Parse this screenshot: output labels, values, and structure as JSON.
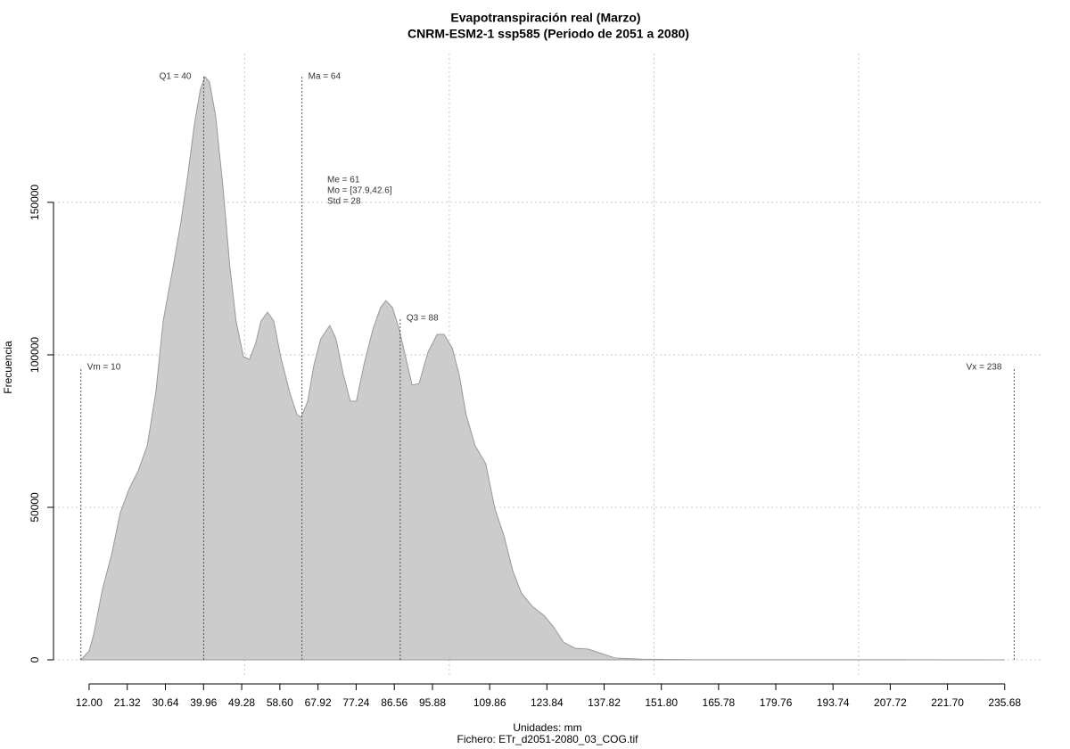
{
  "chart_data": {
    "type": "area",
    "title": "Evapotranspiración real (Marzo)",
    "subtitle": "CNRM-ESM2-1 ssp585 (Periodo de 2051 a 2080)",
    "x_label": "Unidades: mm",
    "y_label": "Frecuencia",
    "caption": "Fichero: ETr_d2051-2080_03_COG.tif",
    "color": "#cccccc",
    "line_color": "#999999",
    "x": [
      10,
      12,
      13.1,
      15.3,
      17.5,
      19.6,
      21.8,
      24,
      26.2,
      28.3,
      30.1,
      32.3,
      34.4,
      36,
      37.7,
      39.2,
      40.3,
      41.4,
      42.9,
      44.7,
      46.4,
      47.9,
      49.7,
      51.2,
      52.7,
      54,
      55.6,
      57.1,
      58.8,
      61,
      62.8,
      63.8,
      65.4,
      66.9,
      68.6,
      70.8,
      72.3,
      74.1,
      75.8,
      77.3,
      79.1,
      81.3,
      83.2,
      84.5,
      86.1,
      87.8,
      89.3,
      90.9,
      92.6,
      94.8,
      97,
      98.7,
      100.7,
      102.4,
      104.1,
      106.3,
      108.9,
      111.1,
      113.3,
      115.5,
      117.6,
      120.3,
      123.1,
      125.3,
      127.9,
      130.7,
      134,
      137.3,
      140.5,
      147,
      160,
      235.7
    ],
    "values": [
      0,
      2900,
      8200,
      23400,
      34500,
      48200,
      56100,
      62000,
      70200,
      87700,
      111100,
      127200,
      143300,
      157900,
      175400,
      187100,
      191200,
      189500,
      178400,
      155000,
      128700,
      111100,
      99400,
      98500,
      103800,
      111100,
      114000,
      111100,
      99400,
      87700,
      80400,
      79500,
      84800,
      96500,
      105300,
      109600,
      105300,
      93600,
      84800,
      84800,
      96500,
      108200,
      115500,
      117800,
      115500,
      108200,
      99400,
      90100,
      90600,
      100900,
      106700,
      106700,
      102300,
      93600,
      80400,
      70200,
      64300,
      49700,
      40900,
      29200,
      21900,
      17500,
      14600,
      11100,
      5800,
      3800,
      3500,
      2000,
      600,
      200,
      50,
      0
    ],
    "xlim": [
      3.3,
      245.1
    ],
    "ylim": [
      -5850,
      198800
    ],
    "xticks": [
      {
        "value": 12,
        "label": "12.00"
      },
      {
        "value": 21.32,
        "label": "21.32"
      },
      {
        "value": 30.64,
        "label": "30.64"
      },
      {
        "value": 39.96,
        "label": "39.96"
      },
      {
        "value": 49.28,
        "label": "49.28"
      },
      {
        "value": 58.6,
        "label": "58.60"
      },
      {
        "value": 67.92,
        "label": "67.92"
      },
      {
        "value": 77.24,
        "label": "77.24"
      },
      {
        "value": 86.56,
        "label": "86.56"
      },
      {
        "value": 95.88,
        "label": "95.88"
      },
      {
        "value": 109.86,
        "label": "109.86"
      },
      {
        "value": 123.84,
        "label": "123.84"
      },
      {
        "value": 137.82,
        "label": "137.82"
      },
      {
        "value": 151.8,
        "label": "151.80"
      },
      {
        "value": 165.78,
        "label": "165.78"
      },
      {
        "value": 179.76,
        "label": "179.76"
      },
      {
        "value": 193.74,
        "label": "193.74"
      },
      {
        "value": 207.72,
        "label": "207.72"
      },
      {
        "value": 221.7,
        "label": "221.70"
      },
      {
        "value": 235.68,
        "label": "235.68"
      }
    ],
    "yticks": [
      0,
      50000,
      100000,
      150000
    ],
    "x_grid": [
      50,
      100,
      150,
      200
    ],
    "grid": true,
    "markers": [
      {
        "label": "Vm = 10",
        "x": 10,
        "top": 96000
      },
      {
        "label": "Q1 = 40",
        "x": 40,
        "top": 191200
      },
      {
        "label": "Ma = 64",
        "x": 64,
        "top": 191200
      },
      {
        "label": "Q3 = 88",
        "x": 88,
        "top": 112000
      },
      {
        "label": "Vx = 238",
        "x": 238,
        "top": 96000
      }
    ],
    "stats": [
      "Me = 61",
      "Mo = [37.9,42.6]",
      "Std = 28"
    ]
  }
}
